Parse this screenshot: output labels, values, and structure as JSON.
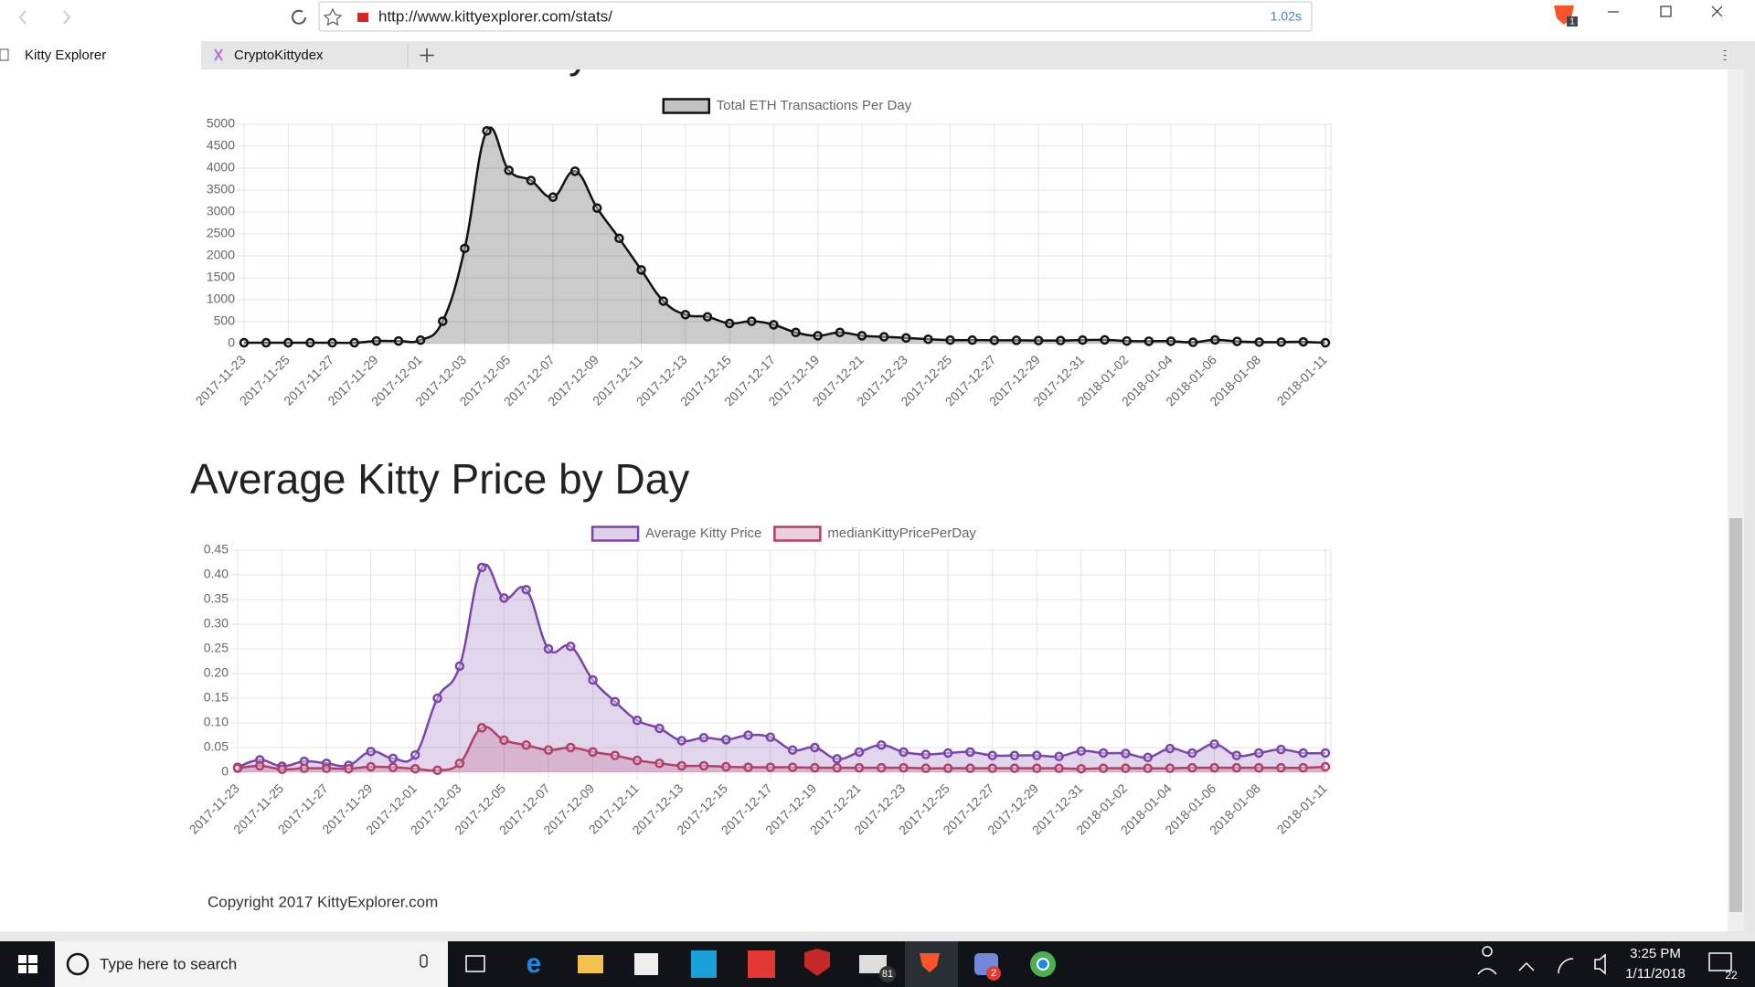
{
  "browser": {
    "url": "http://www.kittyexplorer.com/stats/",
    "load_time": "1.02s",
    "extension_badge": "1",
    "tabs": [
      "Kitty Explorer",
      "CryptoKittydex"
    ]
  },
  "chart_data": [
    {
      "type": "line",
      "title": "ETH Volume Per Day",
      "x": [
        "2017-11-23",
        null,
        "2017-11-25",
        null,
        "2017-11-27",
        null,
        "2017-11-29",
        null,
        "2017-12-01",
        null,
        "2017-12-03",
        null,
        "2017-12-05",
        null,
        "2017-12-07",
        null,
        "2017-12-09",
        null,
        "2017-12-11",
        null,
        "2017-12-13",
        null,
        "2017-12-15",
        null,
        "2017-12-17",
        null,
        "2017-12-19",
        null,
        "2017-12-21",
        null,
        "2017-12-23",
        null,
        "2017-12-25",
        null,
        "2017-12-27",
        null,
        "2017-12-29",
        null,
        "2017-12-31",
        null,
        "2018-01-02",
        null,
        "2018-01-04",
        null,
        "2018-01-06",
        null,
        "2018-01-08",
        null,
        null,
        "2018-01-11"
      ],
      "series": [
        {
          "name": "Total ETH Transactions Per Day",
          "color": "#111111",
          "values": [
            20,
            20,
            20,
            20,
            20,
            20,
            60,
            60,
            80,
            510,
            2170,
            4850,
            3950,
            3720,
            3340,
            3930,
            3090,
            2400,
            1680,
            970,
            660,
            610,
            460,
            510,
            430,
            255,
            180,
            255,
            180,
            155,
            130,
            100,
            80,
            80,
            75,
            75,
            70,
            70,
            80,
            85,
            60,
            55,
            55,
            30,
            85,
            50,
            35,
            35,
            40,
            20
          ]
        }
      ],
      "ylim": [
        0,
        5000
      ],
      "yticks": [
        0,
        500,
        1000,
        1500,
        2000,
        2500,
        3000,
        3500,
        4000,
        4500,
        5000
      ],
      "grid": true,
      "legend": "top"
    },
    {
      "type": "line",
      "title": "Average Kitty Price by Day",
      "x": [
        "2017-11-23",
        null,
        "2017-11-25",
        null,
        "2017-11-27",
        null,
        "2017-11-29",
        null,
        "2017-12-01",
        null,
        "2017-12-03",
        null,
        "2017-12-05",
        null,
        "2017-12-07",
        null,
        "2017-12-09",
        null,
        "2017-12-11",
        null,
        "2017-12-13",
        null,
        "2017-12-15",
        null,
        "2017-12-17",
        null,
        "2017-12-19",
        null,
        "2017-12-21",
        null,
        "2017-12-23",
        null,
        "2017-12-25",
        null,
        "2017-12-27",
        null,
        "2017-12-29",
        null,
        "2017-12-31",
        null,
        "2018-01-02",
        null,
        "2018-01-04",
        null,
        "2018-01-06",
        null,
        "2018-01-08",
        null,
        null,
        "2018-01-11"
      ],
      "series": [
        {
          "name": "Average Kitty Price",
          "color": "#7a45a8",
          "values": [
            0.01,
            0.025,
            0.012,
            0.022,
            0.018,
            0.014,
            0.042,
            0.028,
            0.035,
            0.15,
            0.215,
            0.415,
            0.353,
            0.37,
            0.25,
            0.255,
            0.187,
            0.143,
            0.105,
            0.089,
            0.064,
            0.07,
            0.066,
            0.075,
            0.071,
            0.045,
            0.05,
            0.027,
            0.041,
            0.055,
            0.041,
            0.036,
            0.039,
            0.041,
            0.034,
            0.034,
            0.034,
            0.032,
            0.043,
            0.039,
            0.038,
            0.03,
            0.048,
            0.039,
            0.057,
            0.034,
            0.039,
            0.046,
            0.039,
            0.039
          ]
        },
        {
          "name": "medianKittyPricePerDay",
          "color": "#b0406a",
          "values": [
            0.008,
            0.013,
            0.006,
            0.008,
            0.008,
            0.007,
            0.011,
            0.01,
            0.007,
            0.004,
            0.018,
            0.09,
            0.065,
            0.055,
            0.045,
            0.05,
            0.041,
            0.034,
            0.024,
            0.018,
            0.013,
            0.013,
            0.011,
            0.01,
            0.01,
            0.01,
            0.009,
            0.009,
            0.009,
            0.009,
            0.009,
            0.008,
            0.008,
            0.008,
            0.008,
            0.008,
            0.008,
            0.008,
            0.007,
            0.008,
            0.008,
            0.008,
            0.008,
            0.009,
            0.009,
            0.009,
            0.009,
            0.009,
            0.009,
            0.011
          ]
        }
      ],
      "ylim": [
        0,
        0.45
      ],
      "yticks": [
        0,
        {
          "value": 0.05,
          "label": "0.05"
        },
        {
          "value": 0.1,
          "label": "0.10"
        },
        0.15,
        {
          "value": 0.2,
          "label": "0.20"
        },
        0.25,
        {
          "value": 0.3,
          "label": "0.30"
        },
        0.35,
        {
          "value": 0.4,
          "label": "0.40"
        },
        0.45
      ],
      "grid": true,
      "legend": "top"
    }
  ],
  "page": {
    "copyright": "Copyright 2017 KittyExplorer.com"
  },
  "taskbar": {
    "search_placeholder": "Type here to search",
    "time": "3:25 PM",
    "date": "1/11/2018",
    "mail_badge": "81",
    "discord_badge": "2",
    "notification_badge": "22"
  }
}
